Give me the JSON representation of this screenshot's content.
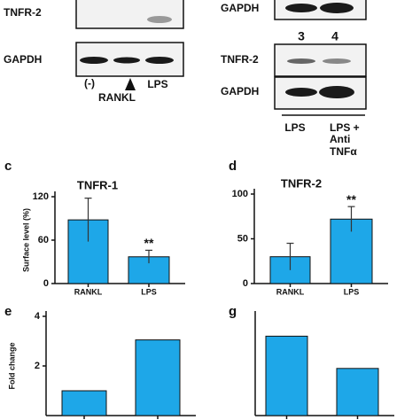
{
  "blots": {
    "left": {
      "rows": [
        "TNFR-2",
        "GAPDH"
      ],
      "lanes": [
        "(-)",
        "RANKL",
        "LPS"
      ]
    },
    "right": {
      "rows": [
        "GAPDH",
        "TNFR-2",
        "GAPDH"
      ],
      "lane_numbers": [
        "3",
        "4"
      ],
      "lanes": [
        "LPS",
        "LPS +",
        "Anti",
        "TNFα"
      ]
    }
  },
  "chart_data": [
    {
      "type": "bar",
      "panel": "c",
      "title": "TNFR-1",
      "y_label": "Surface level (%)",
      "categories": [
        "RANKL",
        "LPS"
      ],
      "values": [
        88,
        37
      ],
      "errors": [
        30,
        9
      ],
      "annotation": "**",
      "color": "#1ea7e8",
      "ylim": [
        0,
        120
      ],
      "yticks": [
        0,
        60,
        120
      ]
    },
    {
      "type": "bar",
      "panel": "d",
      "title": "TNFR-2",
      "categories": [
        "RANKL",
        "LPS"
      ],
      "values": [
        30,
        72
      ],
      "errors": [
        15,
        14
      ],
      "annotation": "**",
      "color": "#1ea7e8",
      "ylim": [
        0,
        100
      ],
      "yticks": [
        0,
        50,
        100
      ]
    },
    {
      "type": "bar",
      "panel": "e",
      "y_label": "Fold change",
      "values": [
        1,
        3.05
      ],
      "color": "#1ea7e8",
      "ylim": [
        0,
        4
      ],
      "yticks": [
        2,
        4
      ]
    },
    {
      "type": "bar",
      "panel": "g",
      "values": [
        3.2,
        1.9
      ],
      "color": "#1ea7e8",
      "ylim": [
        0,
        4
      ]
    }
  ]
}
